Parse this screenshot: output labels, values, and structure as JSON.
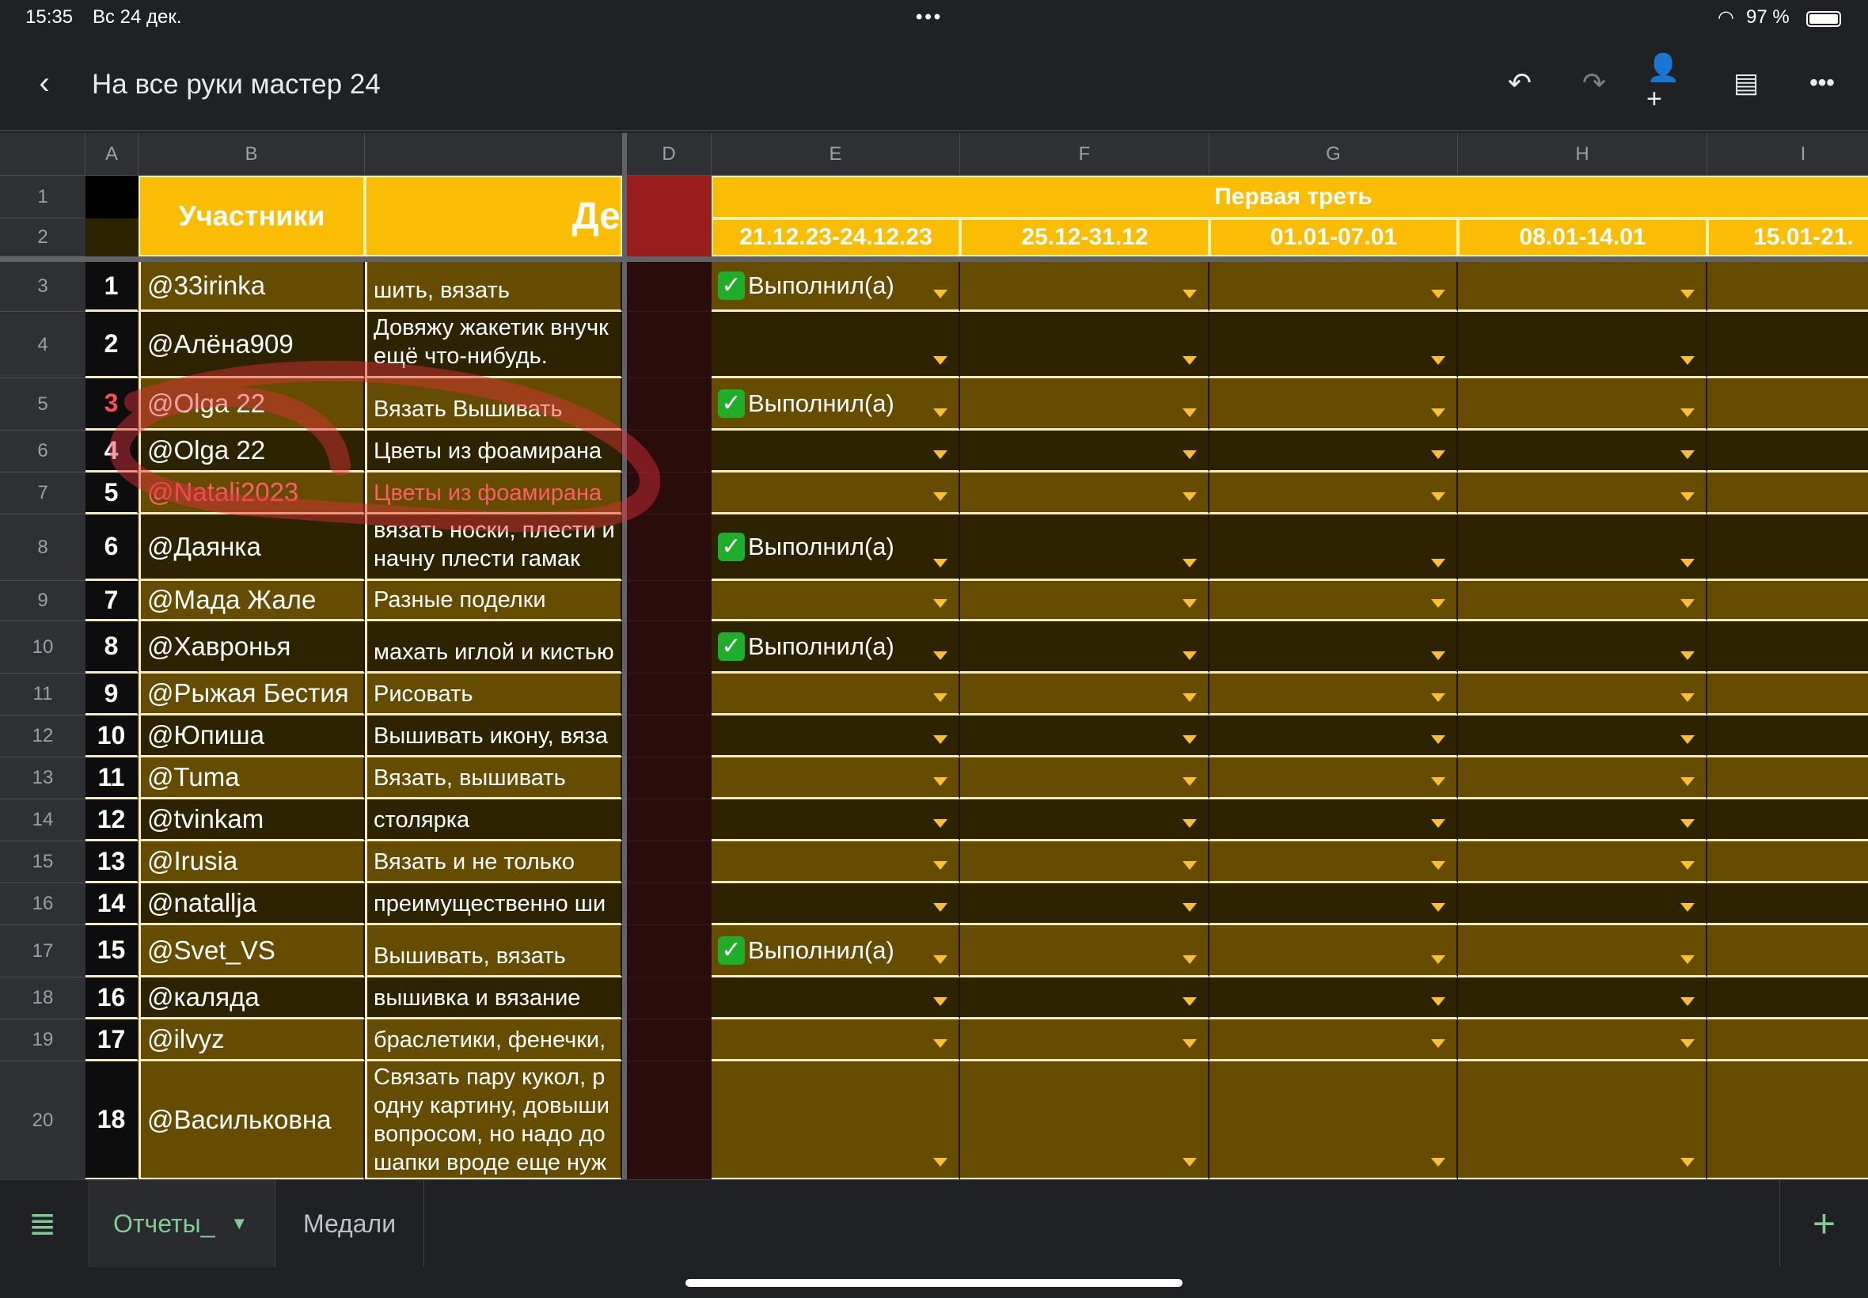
{
  "status": {
    "time": "15:35",
    "date": "Вс 24 дек.",
    "battery": "97 %"
  },
  "header": {
    "title": "На все руки мастер 24",
    "icons": [
      "back-icon",
      "undo-icon",
      "redo-icon",
      "share-person-icon",
      "comments-icon",
      "more-icon"
    ]
  },
  "columns": [
    "",
    "A",
    "B",
    "",
    "D",
    "E",
    "F",
    "G",
    "H",
    "I"
  ],
  "header_rows": {
    "participants": "Участники",
    "activity": "Де",
    "period": "Первая треть",
    "weeks": [
      "21.12.23-24.12.23",
      "25.12-31.12",
      "01.01-07.01",
      "08.01-14.01",
      "15.01-21."
    ]
  },
  "status_option": "Выполнил(а)",
  "rows": [
    {
      "row": "3",
      "num": "1",
      "name": "@33irinka",
      "activity": "шить, вязать",
      "done": true
    },
    {
      "row": "4",
      "num": "2",
      "name": "@Алёна909",
      "activity": "Довяжу жакетик внучк\nещё что-нибудь.",
      "done": false
    },
    {
      "row": "5",
      "num": "3",
      "name": "@Olga 22",
      "activity": "Вязать Вышивать",
      "done": true
    },
    {
      "row": "6",
      "num": "4",
      "name": "@Olga 22",
      "activity": "Цветы из фоамирана",
      "done": false
    },
    {
      "row": "7",
      "num": "5",
      "name": "@Natali2023",
      "activity": "Цветы из фоамирана",
      "done": false,
      "highlight": true
    },
    {
      "row": "8",
      "num": "6",
      "name": "@Даянка",
      "activity": "вязать носки, плести и\nначну плести гамак",
      "done": true
    },
    {
      "row": "9",
      "num": "7",
      "name": "@Мада Жале",
      "activity": "Разные поделки",
      "done": false
    },
    {
      "row": "10",
      "num": "8",
      "name": "@Хавронья",
      "activity": "махать иглой и кистью",
      "done": true
    },
    {
      "row": "11",
      "num": "9",
      "name": "@Рыжая Бестия",
      "activity": "Рисовать",
      "done": false
    },
    {
      "row": "12",
      "num": "10",
      "name": "@Юпиша",
      "activity": "Вышивать икону, вяза",
      "done": false
    },
    {
      "row": "13",
      "num": "11",
      "name": "@Tuma",
      "activity": "Вязать, вышивать",
      "done": false
    },
    {
      "row": "14",
      "num": "12",
      "name": "@tvinkam",
      "activity": "столярка",
      "done": false
    },
    {
      "row": "15",
      "num": "13",
      "name": "@Irusia",
      "activity": "Вязать и не только",
      "done": false
    },
    {
      "row": "16",
      "num": "14",
      "name": "@natallja",
      "activity": "преимущественно ши",
      "done": false
    },
    {
      "row": "17",
      "num": "15",
      "name": "@Svet_VS",
      "activity": "Вышивать, вязать",
      "done": true
    },
    {
      "row": "18",
      "num": "16",
      "name": "@каляда",
      "activity": "вышивка и вязание",
      "done": false
    },
    {
      "row": "19",
      "num": "17",
      "name": "@ilvyz",
      "activity": "браслетики, фенечки,",
      "done": false
    },
    {
      "row": "20",
      "num": "18",
      "name": "@Васильковна",
      "activity": "Связать пару кукол, р\nодну картину, довыши\nвопросом, но надо до\nшапки вроде еще нуж",
      "done": false
    }
  ],
  "sheets": {
    "tabs": [
      "Отчеты_",
      "Медали"
    ],
    "active": 0,
    "active_color": "#81c995"
  },
  "colors": {
    "header_yellow": "#fbbc04",
    "row_olive": "#654c00",
    "row_dark": "#2e2300",
    "col_d_dark": "#2a0c0c",
    "col_d_header": "#9b1c1c",
    "annotation": "#e0303a"
  }
}
